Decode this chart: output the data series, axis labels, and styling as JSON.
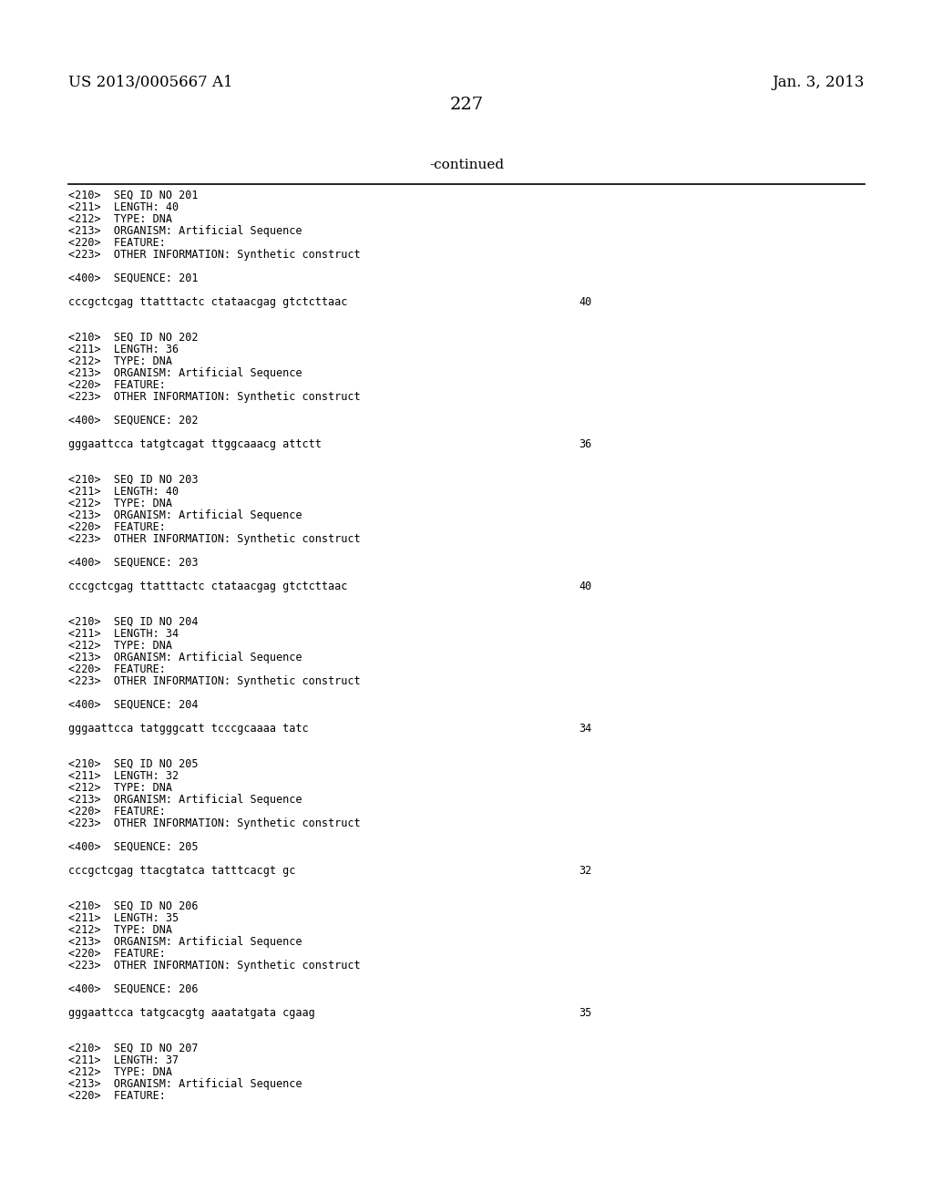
{
  "background_color": "#ffffff",
  "header_left": "US 2013/0005667 A1",
  "header_right": "Jan. 3, 2013",
  "page_number": "227",
  "continued_label": "-continued",
  "text_color": "#000000",
  "line_color": "#000000",
  "font_size_header": 12,
  "font_size_page": 14,
  "font_size_continued": 11,
  "font_size_content": 8.5,
  "content_blocks": [
    {
      "meta_lines": [
        "<210>  SEQ ID NO 201",
        "<211>  LENGTH: 40",
        "<212>  TYPE: DNA",
        "<213>  ORGANISM: Artificial Sequence",
        "<220>  FEATURE:",
        "<223>  OTHER INFORMATION: Synthetic construct"
      ],
      "seq_label": "<400>  SEQUENCE: 201",
      "seq_data": "cccgctcgag ttatttactc ctataacgag gtctcttaac",
      "seq_num": "40"
    },
    {
      "meta_lines": [
        "<210>  SEQ ID NO 202",
        "<211>  LENGTH: 36",
        "<212>  TYPE: DNA",
        "<213>  ORGANISM: Artificial Sequence",
        "<220>  FEATURE:",
        "<223>  OTHER INFORMATION: Synthetic construct"
      ],
      "seq_label": "<400>  SEQUENCE: 202",
      "seq_data": "gggaattcca tatgtcagat ttggcaaacg attctt",
      "seq_num": "36"
    },
    {
      "meta_lines": [
        "<210>  SEQ ID NO 203",
        "<211>  LENGTH: 40",
        "<212>  TYPE: DNA",
        "<213>  ORGANISM: Artificial Sequence",
        "<220>  FEATURE:",
        "<223>  OTHER INFORMATION: Synthetic construct"
      ],
      "seq_label": "<400>  SEQUENCE: 203",
      "seq_data": "cccgctcgag ttatttactc ctataacgag gtctcttaac",
      "seq_num": "40"
    },
    {
      "meta_lines": [
        "<210>  SEQ ID NO 204",
        "<211>  LENGTH: 34",
        "<212>  TYPE: DNA",
        "<213>  ORGANISM: Artificial Sequence",
        "<220>  FEATURE:",
        "<223>  OTHER INFORMATION: Synthetic construct"
      ],
      "seq_label": "<400>  SEQUENCE: 204",
      "seq_data": "gggaattcca tatgggcatt tcccgcaaaa tatc",
      "seq_num": "34"
    },
    {
      "meta_lines": [
        "<210>  SEQ ID NO 205",
        "<211>  LENGTH: 32",
        "<212>  TYPE: DNA",
        "<213>  ORGANISM: Artificial Sequence",
        "<220>  FEATURE:",
        "<223>  OTHER INFORMATION: Synthetic construct"
      ],
      "seq_label": "<400>  SEQUENCE: 205",
      "seq_data": "cccgctcgag ttacgtatca tatttcacgt gc",
      "seq_num": "32"
    },
    {
      "meta_lines": [
        "<210>  SEQ ID NO 206",
        "<211>  LENGTH: 35",
        "<212>  TYPE: DNA",
        "<213>  ORGANISM: Artificial Sequence",
        "<220>  FEATURE:",
        "<223>  OTHER INFORMATION: Synthetic construct"
      ],
      "seq_label": "<400>  SEQUENCE: 206",
      "seq_data": "gggaattcca tatgcacgtg aaatatgata cgaag",
      "seq_num": "35"
    },
    {
      "meta_lines": [
        "<210>  SEQ ID NO 207",
        "<211>  LENGTH: 37",
        "<212>  TYPE: DNA",
        "<213>  ORGANISM: Artificial Sequence",
        "<220>  FEATURE:"
      ],
      "seq_label": null,
      "seq_data": null,
      "seq_num": null
    }
  ]
}
